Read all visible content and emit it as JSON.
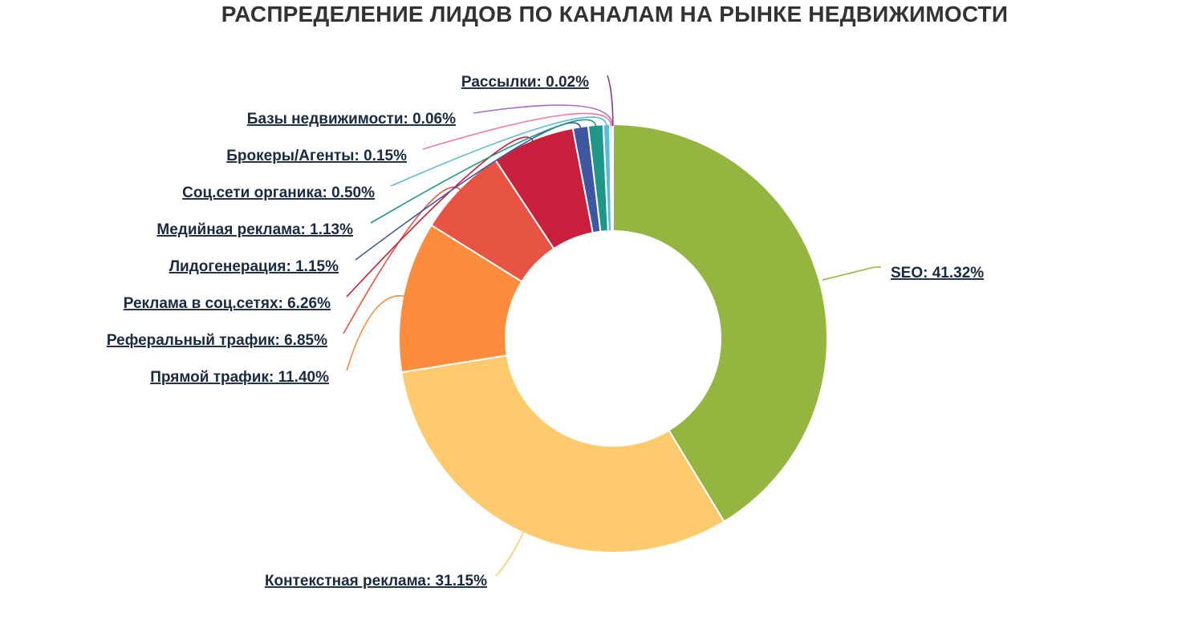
{
  "chart_data": {
    "type": "pie",
    "donut": true,
    "title": "РАСПРЕДЕЛЕНИЕ ЛИДОВ ПО КАНАЛАМ НА РЫНКЕ НЕДВИЖИМОСТИ",
    "slices": [
      {
        "name": "SEO",
        "value": 41.32,
        "label": "SEO: 41.32%",
        "color": "#94b53f"
      },
      {
        "name": "Контекстная реклама",
        "value": 31.15,
        "label": "Контекстная реклама: 31.15%",
        "color": "#fdcb6e"
      },
      {
        "name": "Прямой трафик",
        "value": 11.4,
        "label": "Прямой трафик: 11.40%",
        "color": "#fd8c3c"
      },
      {
        "name": "Реферальный трафик",
        "value": 6.85,
        "label": "Реферальный трафик: 6.85%",
        "color": "#e85444"
      },
      {
        "name": "Реклама в соц.сетях",
        "value": 6.26,
        "label": "Реклама в соц.сетях: 6.26%",
        "color": "#c71f3c"
      },
      {
        "name": "Лидогенерация",
        "value": 1.15,
        "label": "Лидогенерация: 1.15%",
        "color": "#3f57a0"
      },
      {
        "name": "Медийная реклама",
        "value": 1.13,
        "label": "Медийная реклама: 1.13%",
        "color": "#1e9688"
      },
      {
        "name": "Соц.сети органика",
        "value": 0.5,
        "label": "Соц.сети органика: 0.50%",
        "color": "#5bbbd6"
      },
      {
        "name": "Брокеры/Агенты",
        "value": 0.15,
        "label": "Брокеры/Агенты: 0.15%",
        "color": "#f07aa5"
      },
      {
        "name": "Базы недвижимости",
        "value": 0.06,
        "label": "Базы недвижимости: 0.06%",
        "color": "#a970c9"
      },
      {
        "name": "Рассылки",
        "value": 0.02,
        "label": "Рассылки: 0.02%",
        "color": "#8b3a8f"
      }
    ]
  }
}
